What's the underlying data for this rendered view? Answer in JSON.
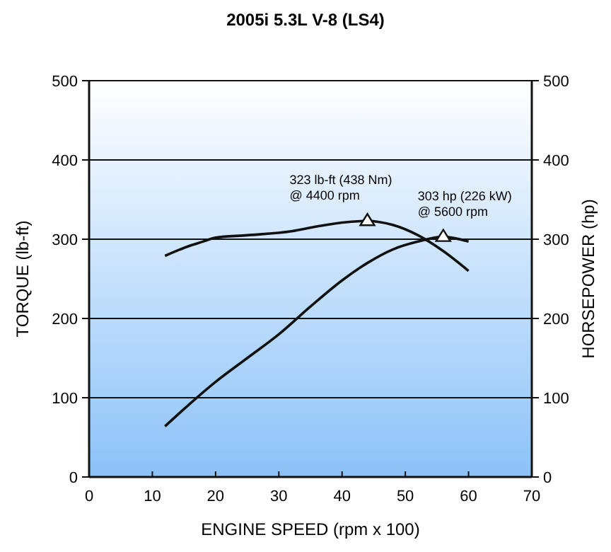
{
  "chart_data": {
    "type": "line",
    "title": "2005i 5.3L V-8 (LS4)",
    "xlabel": "ENGINE SPEED (rpm x 100)",
    "ylabel": "TORQUE (lb-ft)",
    "y2label": "HORSEPOWER (hp)",
    "xlim": [
      0,
      70
    ],
    "xticks": [
      0,
      10,
      20,
      30,
      40,
      50,
      60,
      70
    ],
    "ylim": [
      0,
      500
    ],
    "yticks": [
      0,
      100,
      200,
      300,
      400,
      500
    ],
    "y2lim": [
      0,
      500
    ],
    "y2ticks": [
      0,
      100,
      200,
      300,
      400,
      500
    ],
    "grid": "y",
    "marker": "none",
    "line_style": "solid",
    "series": [
      {
        "color": "#111111",
        "x": [
          12,
          16,
          18,
          20,
          25,
          32,
          36,
          40,
          44,
          48,
          52,
          56,
          60
        ],
        "values": [
          279,
          292,
          297,
          302,
          305,
          310,
          316,
          321,
          323,
          318,
          305,
          285,
          260
        ]
      },
      {
        "color": "#111111",
        "x": [
          12,
          20,
          25,
          30,
          35,
          40,
          44,
          48,
          52,
          56,
          60
        ],
        "values": [
          64,
          120,
          150,
          180,
          215,
          248,
          270,
          287,
          297,
          303,
          297
        ]
      }
    ],
    "annotations": [
      {
        "text": "323 lb-ft (438 Nm)\n@ 4400 rpm",
        "x": 44,
        "y": 323
      },
      {
        "text": "303 hp (226 kW)\n@ 5600 rpm",
        "x": 56,
        "y": 303
      }
    ]
  }
}
